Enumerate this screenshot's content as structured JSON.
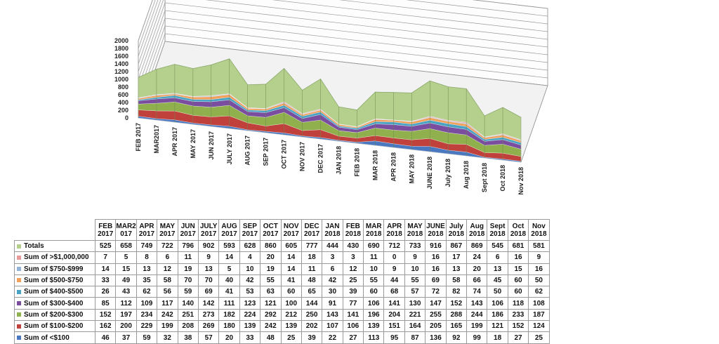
{
  "chart_data": {
    "type": "area",
    "stacked": true,
    "three_d": true,
    "categories": [
      "FEB 2017",
      "MAR2017",
      "APR 2017",
      "MAY 2017",
      "JUN 2017",
      "JULY 2017",
      "AUG 2017",
      "SEP 2017",
      "OCT 2017",
      "NOV 2017",
      "DEC 2017",
      "JAN 2018",
      "FEB 2018",
      "MAR 2018",
      "APR 2018",
      "MAY 2018",
      "JUNE 2018",
      "July 2018",
      "Aug 2018",
      "Sept 2018",
      "Oct 2018",
      "Nov 2018"
    ],
    "y_ticks": [
      "2000",
      "1800",
      "1600",
      "1400",
      "1200",
      "1000",
      "800",
      "600",
      "400",
      "200",
      "0"
    ],
    "ylim": [
      0,
      2000
    ],
    "grid": true,
    "table": {
      "header": [
        "FEB 2017",
        "MAR2 017",
        "APR 2017",
        "MAY 2017",
        "JUN 2017",
        "JULY 2017",
        "AUG 2017",
        "SEP 2017",
        "OCT 2017",
        "NOV 2017",
        "DEC 2017",
        "JAN 2018",
        "FEB 2018",
        "MAR 2018",
        "APR 2018",
        "MAY 2018",
        "JUNE 2018",
        "July 2018",
        "Aug 2018",
        "Sept 2018",
        "Oct 2018",
        "Nov 2018"
      ]
    },
    "series": [
      {
        "name": "Totals",
        "color": "#b5cf8c",
        "values": [
          525,
          658,
          749,
          722,
          796,
          902,
          593,
          628,
          860,
          605,
          777,
          444,
          430,
          690,
          712,
          733,
          916,
          867,
          869,
          545,
          681,
          581
        ]
      },
      {
        "name": "Sum of >$1,000,000",
        "color": "#e89a9a",
        "values": [
          7,
          5,
          8,
          6,
          11,
          9,
          14,
          4,
          20,
          14,
          18,
          3,
          3,
          11,
          0,
          9,
          16,
          17,
          24,
          6,
          16,
          9
        ]
      },
      {
        "name": "Sum of $750-$999",
        "color": "#94b3d9",
        "values": [
          14,
          15,
          13,
          12,
          19,
          13,
          5,
          10,
          19,
          14,
          11,
          6,
          12,
          10,
          9,
          10,
          16,
          13,
          20,
          13,
          15,
          16
        ]
      },
      {
        "name": "Sum of $500-$750",
        "color": "#f0a05a",
        "values": [
          33,
          49,
          35,
          58,
          70,
          70,
          40,
          42,
          55,
          41,
          48,
          42,
          25,
          55,
          44,
          55,
          69,
          58,
          66,
          45,
          60,
          50
        ]
      },
      {
        "name": "Sum of $400-$500",
        "color": "#4aa3c3",
        "values": [
          26,
          43,
          62,
          56,
          59,
          69,
          41,
          53,
          63,
          60,
          65,
          30,
          39,
          60,
          68,
          57,
          72,
          82,
          74,
          50,
          60,
          62
        ]
      },
      {
        "name": "Sum of $300-$400",
        "color": "#7a4d9e",
        "values": [
          85,
          112,
          109,
          117,
          140,
          142,
          111,
          123,
          121,
          100,
          144,
          91,
          77,
          106,
          141,
          130,
          147,
          152,
          143,
          106,
          118,
          108
        ]
      },
      {
        "name": "Sum of $200-$300",
        "color": "#8fb04d",
        "values": [
          152,
          197,
          234,
          242,
          251,
          273,
          182,
          224,
          292,
          212,
          250,
          143,
          141,
          196,
          204,
          221,
          255,
          288,
          244,
          186,
          233,
          187
        ]
      },
      {
        "name": "Sum of $100-$200",
        "color": "#c0413c",
        "values": [
          162,
          200,
          229,
          199,
          208,
          269,
          180,
          139,
          242,
          139,
          202,
          107,
          106,
          139,
          151,
          164,
          205,
          165,
          199,
          121,
          152,
          124
        ]
      },
      {
        "name": "Sum of <$100",
        "color": "#4a78c0",
        "values": [
          46,
          37,
          59,
          32,
          38,
          57,
          20,
          33,
          48,
          25,
          39,
          22,
          27,
          113,
          95,
          87,
          136,
          92,
          99,
          18,
          27,
          25
        ]
      }
    ]
  }
}
